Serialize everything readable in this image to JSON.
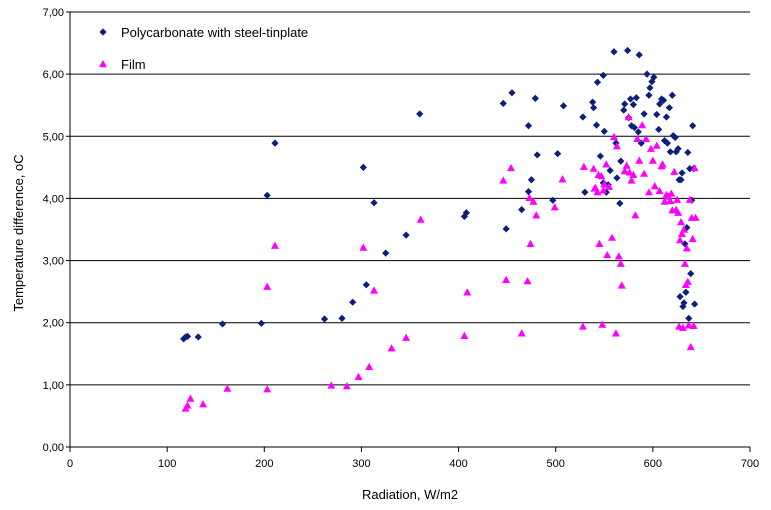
{
  "chart_data": {
    "type": "scatter",
    "title": "",
    "xlabel": "Radiation, W/m2",
    "ylabel": "Temperature difference, oC",
    "xlim": [
      0,
      700
    ],
    "ylim": [
      0,
      7
    ],
    "x_ticks": [
      "0",
      "100",
      "200",
      "300",
      "400",
      "500",
      "600",
      "700"
    ],
    "y_ticks": [
      "0,00",
      "1,00",
      "2,00",
      "3,00",
      "4,00",
      "5,00",
      "6,00",
      "7,00"
    ],
    "grid": "horizontal",
    "legend_position": "top-left",
    "series": [
      {
        "name": "Polycarbonate with steel-tinplate",
        "marker": "diamond",
        "color": "#0c1f7a",
        "points": [
          [
            117,
            1.74
          ],
          [
            119,
            1.77
          ],
          [
            121,
            1.78
          ],
          [
            132,
            1.77
          ],
          [
            157,
            1.98
          ],
          [
            197,
            1.99
          ],
          [
            203,
            4.05
          ],
          [
            211,
            4.89
          ],
          [
            262,
            2.06
          ],
          [
            280,
            2.07
          ],
          [
            291,
            2.33
          ],
          [
            302,
            4.5
          ],
          [
            305,
            2.61
          ],
          [
            313,
            3.93
          ],
          [
            325,
            3.12
          ],
          [
            346,
            3.41
          ],
          [
            360,
            5.36
          ],
          [
            406,
            3.71
          ],
          [
            408,
            3.77
          ],
          [
            446,
            5.53
          ],
          [
            449,
            3.51
          ],
          [
            455,
            5.7
          ],
          [
            465,
            3.82
          ],
          [
            472,
            4.11
          ],
          [
            472,
            5.17
          ],
          [
            475,
            4.3
          ],
          [
            479,
            5.61
          ],
          [
            481,
            4.7
          ],
          [
            497,
            3.97
          ],
          [
            502,
            4.72
          ],
          [
            508,
            5.49
          ],
          [
            528,
            5.31
          ],
          [
            530,
            4.1
          ],
          [
            538,
            5.55
          ],
          [
            539,
            5.46
          ],
          [
            542,
            5.18
          ],
          [
            543,
            5.87
          ],
          [
            546,
            4.68
          ],
          [
            549,
            5.98
          ],
          [
            549,
            4.25
          ],
          [
            550,
            5.08
          ],
          [
            552,
            4.1
          ],
          [
            554,
            4.22
          ],
          [
            556,
            4.45
          ],
          [
            560,
            6.36
          ],
          [
            562,
            4.89
          ],
          [
            563,
            4.33
          ],
          [
            566,
            3.92
          ],
          [
            567,
            4.6
          ],
          [
            570,
            5.42
          ],
          [
            571,
            5.52
          ],
          [
            574,
            6.38
          ],
          [
            575,
            5.3
          ],
          [
            577,
            5.6
          ],
          [
            578,
            5.17
          ],
          [
            580,
            5.51
          ],
          [
            581,
            5.14
          ],
          [
            583,
            5.62
          ],
          [
            585,
            5.07
          ],
          [
            586,
            6.31
          ],
          [
            588,
            4.89
          ],
          [
            591,
            5.36
          ],
          [
            594,
            6
          ],
          [
            596,
            5.66
          ],
          [
            597,
            5.78
          ],
          [
            599,
            5.88
          ],
          [
            601,
            5.95
          ],
          [
            604,
            5.35
          ],
          [
            606,
            5.11
          ],
          [
            607,
            5.52
          ],
          [
            609,
            5.6
          ],
          [
            611,
            5.58
          ],
          [
            612,
            4.93
          ],
          [
            614,
            5.31
          ],
          [
            615,
            4.89
          ],
          [
            617,
            5.46
          ],
          [
            618,
            4.75
          ],
          [
            620,
            5.66
          ],
          [
            621,
            5.01
          ],
          [
            623,
            4.98
          ],
          [
            624,
            4.75
          ],
          [
            626,
            4.8
          ],
          [
            627,
            4.3
          ],
          [
            628,
            2.42
          ],
          [
            629,
            4.3
          ],
          [
            630,
            4.41
          ],
          [
            631,
            2.26
          ],
          [
            632,
            2.32
          ],
          [
            633,
            3.27
          ],
          [
            634,
            2.49
          ],
          [
            635,
            3.53
          ],
          [
            636,
            4.74
          ],
          [
            637,
            2.07
          ],
          [
            638,
            4.48
          ],
          [
            639,
            2.79
          ],
          [
            640,
            3.97
          ],
          [
            641,
            5.17
          ],
          [
            642,
            4.48
          ],
          [
            643,
            2.3
          ]
        ]
      },
      {
        "name": "Film",
        "marker": "triangle",
        "color": "#ff00ff",
        "points": [
          [
            119,
            0.62
          ],
          [
            121,
            0.67
          ],
          [
            124,
            0.78
          ],
          [
            137,
            0.69
          ],
          [
            162,
            0.94
          ],
          [
            203,
            0.93
          ],
          [
            203,
            2.58
          ],
          [
            211,
            3.24
          ],
          [
            269,
            0.99
          ],
          [
            285,
            0.98
          ],
          [
            297,
            1.13
          ],
          [
            302,
            3.21
          ],
          [
            308,
            1.29
          ],
          [
            313,
            2.52
          ],
          [
            331,
            1.59
          ],
          [
            346,
            1.76
          ],
          [
            361,
            3.66
          ],
          [
            406,
            1.79
          ],
          [
            409,
            2.49
          ],
          [
            446,
            4.29
          ],
          [
            449,
            2.69
          ],
          [
            454,
            4.49
          ],
          [
            465,
            1.83
          ],
          [
            471,
            2.67
          ],
          [
            473,
            4.01
          ],
          [
            474,
            3.27
          ],
          [
            477,
            3.95
          ],
          [
            480,
            3.73
          ],
          [
            499,
            3.86
          ],
          [
            507,
            4.31
          ],
          [
            528,
            1.94
          ],
          [
            529,
            4.51
          ],
          [
            539,
            4.48
          ],
          [
            540,
            4.16
          ],
          [
            541,
            4.17
          ],
          [
            543,
            4.1
          ],
          [
            544,
            4.38
          ],
          [
            545,
            3.27
          ],
          [
            547,
            4.36
          ],
          [
            548,
            1.97
          ],
          [
            549,
            4.13
          ],
          [
            550,
            4.23
          ],
          [
            552,
            4.55
          ],
          [
            553,
            3.09
          ],
          [
            555,
            4.19
          ],
          [
            558,
            3.37
          ],
          [
            560,
            4.99
          ],
          [
            562,
            1.83
          ],
          [
            563,
            4.84
          ],
          [
            565,
            3.07
          ],
          [
            567,
            2.95
          ],
          [
            568,
            2.6
          ],
          [
            571,
            4.44
          ],
          [
            573,
            4.53
          ],
          [
            575,
            5.31
          ],
          [
            576,
            4.42
          ],
          [
            578,
            4.29
          ],
          [
            580,
            4.38
          ],
          [
            582,
            3.73
          ],
          [
            584,
            4.96
          ],
          [
            586,
            4.61
          ],
          [
            589,
            5.18
          ],
          [
            591,
            4.4
          ],
          [
            593,
            4.96
          ],
          [
            596,
            4.1
          ],
          [
            598,
            4.8
          ],
          [
            600,
            4.61
          ],
          [
            602,
            4.2
          ],
          [
            604,
            4.85
          ],
          [
            607,
            4.12
          ],
          [
            609,
            4.52
          ],
          [
            610,
            4.55
          ],
          [
            612,
            3.95
          ],
          [
            614,
            4.06
          ],
          [
            616,
            4.03
          ],
          [
            618,
            3.96
          ],
          [
            619,
            4.08
          ],
          [
            620,
            3.81
          ],
          [
            622,
            4.43
          ],
          [
            624,
            3.82
          ],
          [
            625,
            3.98
          ],
          [
            626,
            3.77
          ],
          [
            627,
            1.94
          ],
          [
            628,
            3.33
          ],
          [
            629,
            3.62
          ],
          [
            630,
            3.43
          ],
          [
            631,
            1.92
          ],
          [
            632,
            3.5
          ],
          [
            633,
            2.95
          ],
          [
            634,
            2.61
          ],
          [
            635,
            3.2
          ],
          [
            636,
            2.66
          ],
          [
            637,
            1.96
          ],
          [
            638,
            3.98
          ],
          [
            639,
            1.61
          ],
          [
            640,
            3.69
          ],
          [
            641,
            3.35
          ],
          [
            642,
            1.95
          ],
          [
            643,
            4.49
          ],
          [
            644,
            3.69
          ]
        ]
      }
    ]
  }
}
